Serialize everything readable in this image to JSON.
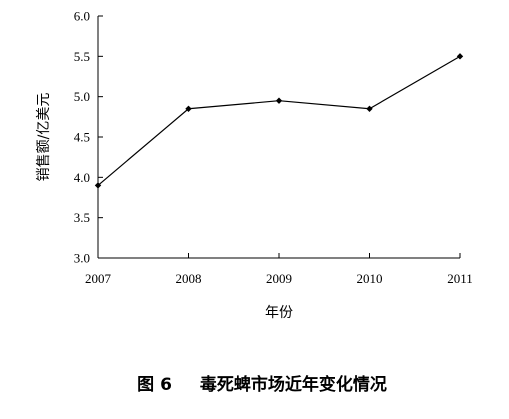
{
  "chart_data": {
    "type": "line",
    "title": "",
    "caption_number": "图 6",
    "caption_text": "毒死蜱市场近年变化情况",
    "xlabel": "年份",
    "ylabel": "销售额/亿美元",
    "x": [
      "2007",
      "2008",
      "2009",
      "2010",
      "2011"
    ],
    "series": [
      {
        "values": [
          3.9,
          4.85,
          4.95,
          4.85,
          5.5
        ]
      }
    ],
    "ylim": [
      3.0,
      6.0
    ],
    "yticks": [
      "3.0",
      "3.5",
      "4.0",
      "4.5",
      "5.0",
      "5.5",
      "6.0"
    ],
    "ytick_values": [
      3.0,
      3.5,
      4.0,
      4.5,
      5.0,
      5.5,
      6.0
    ],
    "grid": false,
    "legend": "none",
    "line_color": "#000000",
    "marker": "diamond"
  }
}
